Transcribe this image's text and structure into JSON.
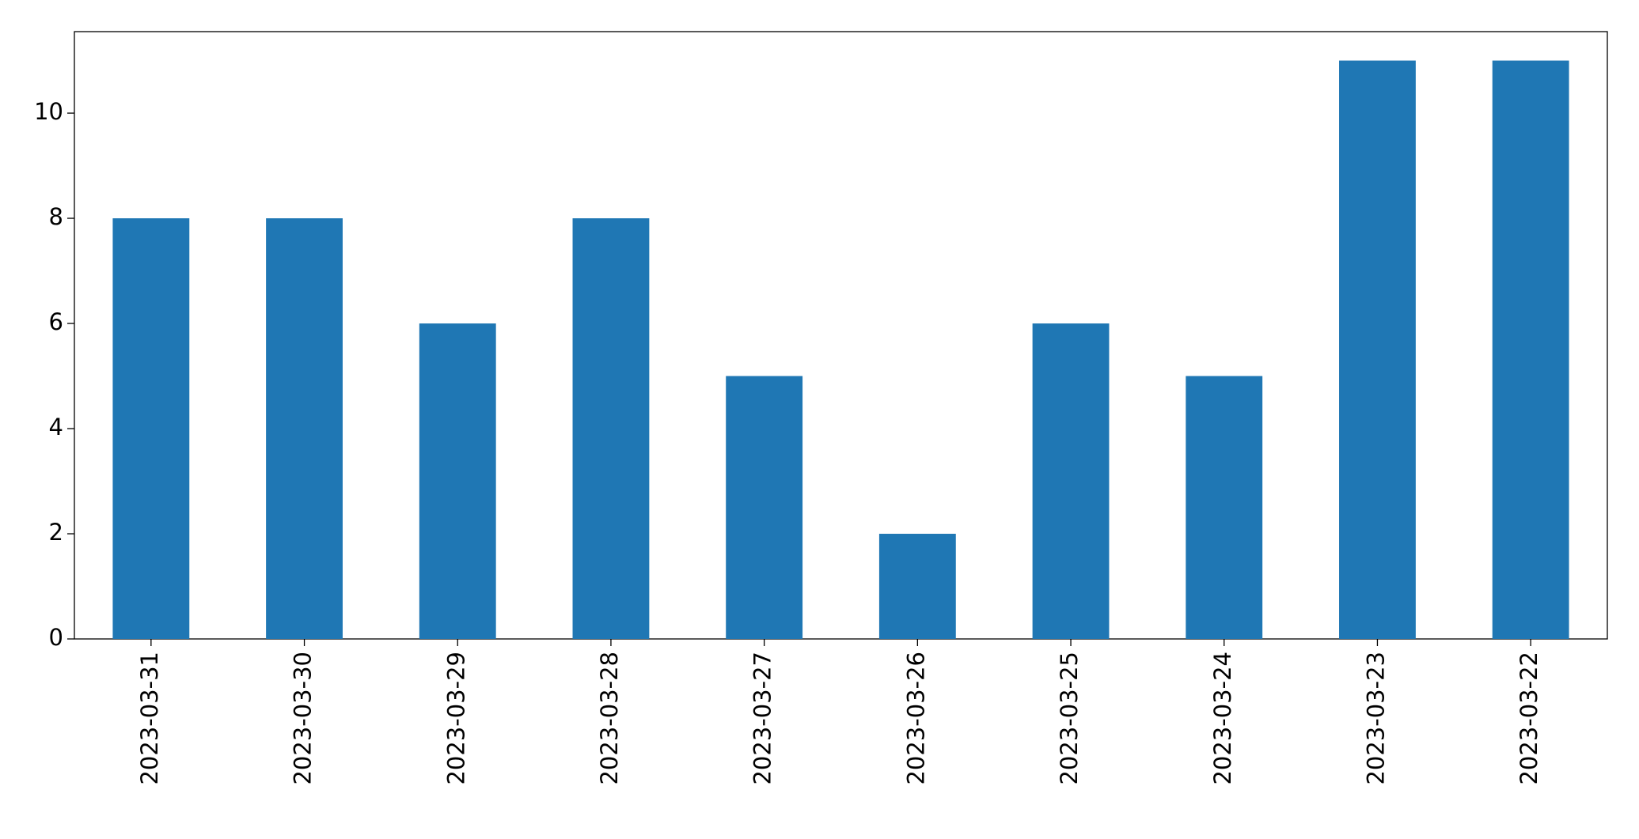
{
  "chart_data": {
    "type": "bar",
    "categories": [
      "2023-03-31",
      "2023-03-30",
      "2023-03-29",
      "2023-03-28",
      "2023-03-27",
      "2023-03-26",
      "2023-03-25",
      "2023-03-24",
      "2023-03-23",
      "2023-03-22"
    ],
    "values": [
      8,
      8,
      6,
      8,
      5,
      2,
      6,
      5,
      11,
      11
    ],
    "color": "#1f77b4",
    "ylim": [
      0,
      11.55
    ],
    "yticks": [
      0,
      2,
      4,
      6,
      8,
      10
    ],
    "grid": false
  }
}
